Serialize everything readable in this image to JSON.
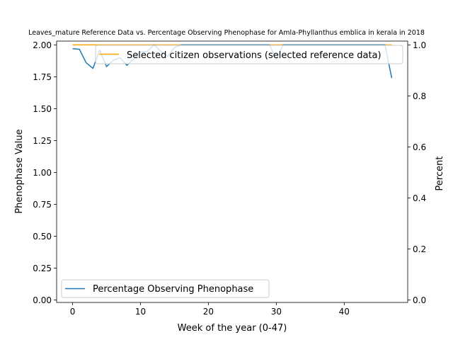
{
  "chart_data": {
    "type": "line",
    "title": "Leaves_mature Reference Data vs. Percentage Observing Phenophase for Amla-Phyllanthus emblica in kerala in 2018",
    "xlabel": "Week of the year (0-47)",
    "ylabel_left": "Phenophase Value",
    "ylabel_right": "Percent",
    "xlim": [
      -2.35,
      49.35
    ],
    "ylim_left": [
      -0.02,
      2.03
    ],
    "ylim_right": [
      -0.01,
      1.015
    ],
    "x_ticks": [
      0,
      10,
      20,
      30,
      40
    ],
    "y_ticks_left": [
      "0.00",
      "0.25",
      "0.50",
      "0.75",
      "1.00",
      "1.25",
      "1.50",
      "1.75",
      "2.00"
    ],
    "y_ticks_right": [
      "0.0",
      "0.2",
      "0.4",
      "0.6",
      "0.8",
      "1.0"
    ],
    "series": [
      {
        "name": "Selected citizen observations (selected reference data)",
        "axis": "left",
        "color": "#ffa500",
        "x": [
          0,
          47
        ],
        "y": [
          2.0,
          2.0
        ]
      },
      {
        "name": "Percentage Observing Phenophase",
        "axis": "right",
        "color": "#1f77b4",
        "x": [
          0,
          1,
          2,
          3,
          4,
          5,
          6,
          7,
          8,
          9,
          10,
          11,
          12,
          13,
          14,
          15,
          16,
          17,
          18,
          19,
          20,
          21,
          22,
          23,
          24,
          25,
          26,
          27,
          28,
          29,
          30,
          31,
          32,
          33,
          34,
          35,
          36,
          37,
          38,
          39,
          40,
          41,
          42,
          43,
          44,
          45,
          46,
          47
        ],
        "y": [
          0.985,
          0.983,
          0.93,
          0.908,
          0.98,
          0.915,
          0.94,
          0.95,
          0.92,
          0.945,
          0.972,
          0.975,
          1.0,
          0.975,
          0.955,
          0.99,
          1.0,
          1.0,
          1.0,
          1.0,
          1.0,
          1.0,
          1.0,
          1.0,
          1.0,
          1.0,
          1.0,
          1.0,
          1.0,
          1.0,
          0.943,
          1.0,
          1.0,
          1.0,
          1.0,
          1.0,
          1.0,
          1.0,
          1.0,
          1.0,
          1.0,
          1.0,
          1.0,
          1.0,
          1.0,
          1.0,
          1.0,
          0.87
        ]
      }
    ],
    "legend_upper": "upper-center",
    "legend_lower": "lower-left"
  }
}
